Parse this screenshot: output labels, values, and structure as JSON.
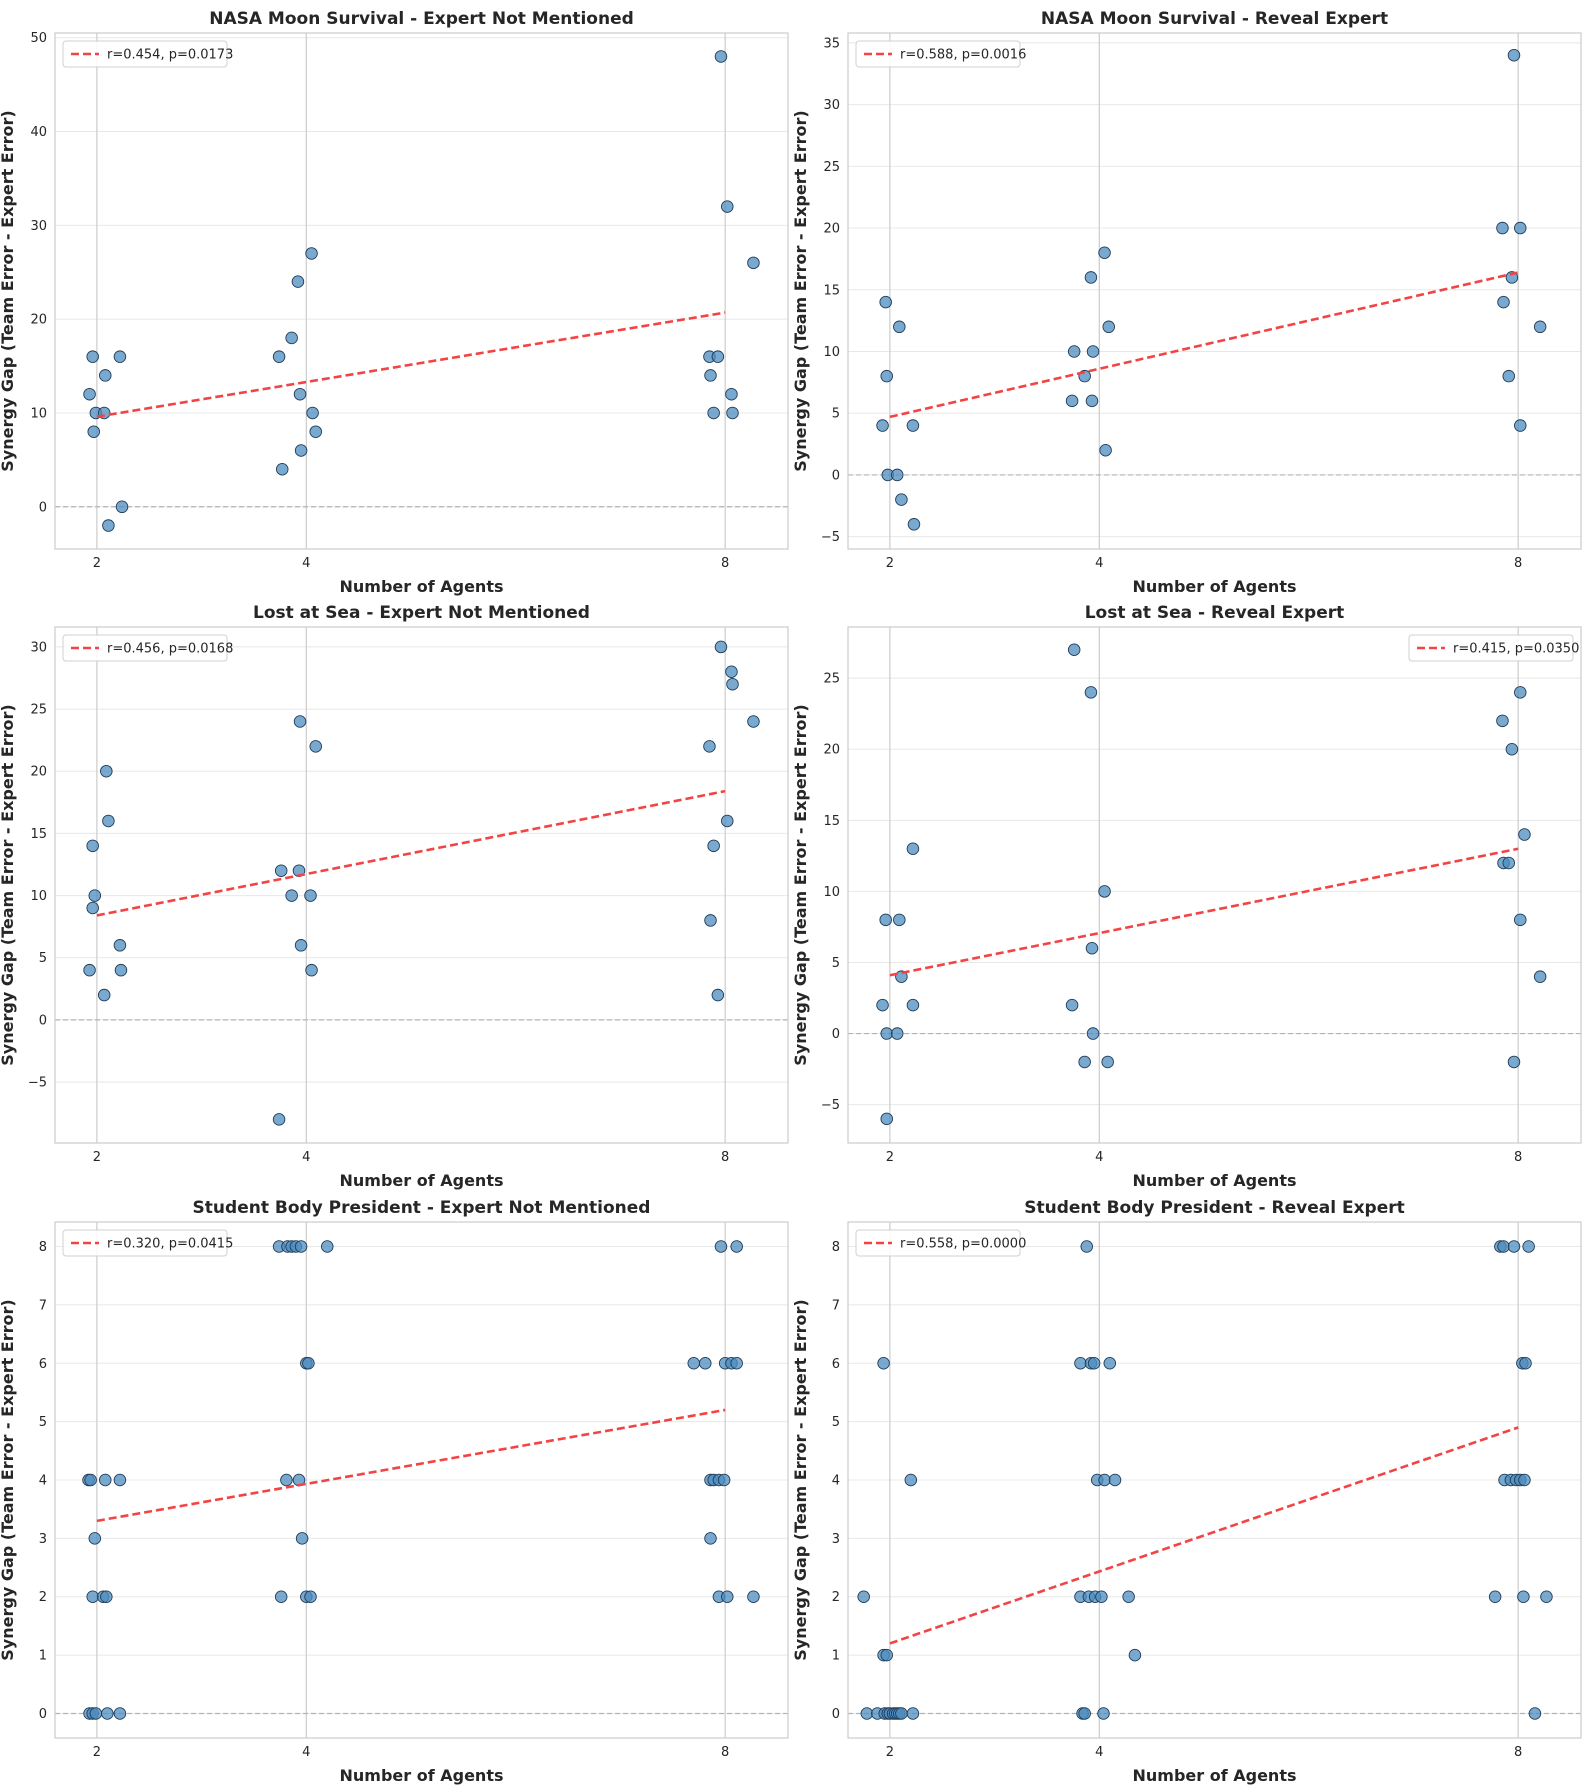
{
  "colors": {
    "point_fill": "#4c8cbf",
    "point_edge": "#1f3b57",
    "fit_line": "#f24444",
    "grid": "#e8e8e8",
    "vgrid": "#cccccc",
    "zero_line": "#b3b3b3",
    "frame": "#cccccc",
    "text": "#262626"
  },
  "chart_data": [
    {
      "type": "scatter",
      "title": "NASA Moon Survival - Expert Not Mentioned",
      "xlabel": "Number of Agents",
      "ylabel": "Synergy Gap (Team Error - Expert Error)",
      "x_ticks": [
        2,
        4,
        8
      ],
      "y_ticks": [
        0,
        10,
        20,
        30,
        40,
        50
      ],
      "xlim": [
        1.6,
        8.6
      ],
      "ylim": [
        -4.5,
        50.5
      ],
      "legend": {
        "label": "r=0.454, p=0.0173",
        "position": "upper-left"
      },
      "fit": {
        "x": [
          2,
          8
        ],
        "y": [
          9.6,
          20.7
        ]
      },
      "points": [
        {
          "x": 1.93,
          "y": 12
        },
        {
          "x": 1.96,
          "y": 16
        },
        {
          "x": 1.97,
          "y": 8
        },
        {
          "x": 1.99,
          "y": 10
        },
        {
          "x": 2.07,
          "y": 10
        },
        {
          "x": 2.08,
          "y": 14
        },
        {
          "x": 2.11,
          "y": -2
        },
        {
          "x": 2.22,
          "y": 16
        },
        {
          "x": 2.24,
          "y": 0
        },
        {
          "x": 3.74,
          "y": 16
        },
        {
          "x": 3.77,
          "y": 4
        },
        {
          "x": 3.86,
          "y": 18
        },
        {
          "x": 3.92,
          "y": 24
        },
        {
          "x": 3.94,
          "y": 12
        },
        {
          "x": 3.95,
          "y": 6
        },
        {
          "x": 4.05,
          "y": 27
        },
        {
          "x": 4.06,
          "y": 10
        },
        {
          "x": 4.09,
          "y": 8
        },
        {
          "x": 7.85,
          "y": 16
        },
        {
          "x": 7.86,
          "y": 14
        },
        {
          "x": 7.89,
          "y": 10
        },
        {
          "x": 7.93,
          "y": 16
        },
        {
          "x": 7.96,
          "y": 48
        },
        {
          "x": 8.02,
          "y": 32
        },
        {
          "x": 8.06,
          "y": 12
        },
        {
          "x": 8.07,
          "y": 10
        },
        {
          "x": 8.27,
          "y": 26
        }
      ]
    },
    {
      "type": "scatter",
      "title": "NASA Moon Survival - Reveal Expert",
      "xlabel": "Number of Agents",
      "ylabel": "Synergy Gap (Team Error - Expert Error)",
      "x_ticks": [
        2,
        4,
        8
      ],
      "y_ticks": [
        -5,
        0,
        5,
        10,
        15,
        20,
        25,
        30,
        35
      ],
      "xlim": [
        1.6,
        8.6
      ],
      "ylim": [
        -6.0,
        35.8
      ],
      "legend": {
        "label": "r=0.588, p=0.0016",
        "position": "upper-left"
      },
      "fit": {
        "x": [
          2,
          8
        ],
        "y": [
          4.7,
          16.4
        ]
      },
      "points": [
        {
          "x": 1.93,
          "y": 4
        },
        {
          "x": 1.96,
          "y": 14
        },
        {
          "x": 1.97,
          "y": 8
        },
        {
          "x": 1.98,
          "y": 0
        },
        {
          "x": 2.07,
          "y": 0
        },
        {
          "x": 2.09,
          "y": 12
        },
        {
          "x": 2.11,
          "y": -2
        },
        {
          "x": 2.22,
          "y": 4
        },
        {
          "x": 2.23,
          "y": -4
        },
        {
          "x": 3.74,
          "y": 6
        },
        {
          "x": 3.76,
          "y": 10
        },
        {
          "x": 3.86,
          "y": 8
        },
        {
          "x": 3.92,
          "y": 16
        },
        {
          "x": 3.93,
          "y": 6
        },
        {
          "x": 3.94,
          "y": 10
        },
        {
          "x": 4.05,
          "y": 18
        },
        {
          "x": 4.06,
          "y": 2
        },
        {
          "x": 4.09,
          "y": 12
        },
        {
          "x": 7.85,
          "y": 20
        },
        {
          "x": 7.86,
          "y": 14
        },
        {
          "x": 7.91,
          "y": 8
        },
        {
          "x": 7.94,
          "y": 16
        },
        {
          "x": 7.96,
          "y": 34
        },
        {
          "x": 8.02,
          "y": 20
        },
        {
          "x": 8.02,
          "y": 4
        },
        {
          "x": 8.21,
          "y": 12
        }
      ]
    },
    {
      "type": "scatter",
      "title": "Lost at Sea - Expert Not Mentioned",
      "xlabel": "Number of Agents",
      "ylabel": "Synergy Gap (Team Error - Expert Error)",
      "x_ticks": [
        2,
        4,
        8
      ],
      "y_ticks": [
        -5,
        0,
        5,
        10,
        15,
        20,
        25,
        30
      ],
      "xlim": [
        1.6,
        8.6
      ],
      "ylim": [
        -9.9,
        31.6
      ],
      "legend": {
        "label": "r=0.456, p=0.0168",
        "position": "upper-left"
      },
      "fit": {
        "x": [
          2,
          8
        ],
        "y": [
          8.4,
          18.4
        ]
      },
      "points": [
        {
          "x": 1.93,
          "y": 4
        },
        {
          "x": 1.96,
          "y": 14
        },
        {
          "x": 1.96,
          "y": 9
        },
        {
          "x": 1.98,
          "y": 10
        },
        {
          "x": 2.07,
          "y": 2
        },
        {
          "x": 2.09,
          "y": 20
        },
        {
          "x": 2.11,
          "y": 16
        },
        {
          "x": 2.22,
          "y": 6
        },
        {
          "x": 2.23,
          "y": 4
        },
        {
          "x": 3.74,
          "y": -8
        },
        {
          "x": 3.76,
          "y": 12
        },
        {
          "x": 3.86,
          "y": 10
        },
        {
          "x": 3.93,
          "y": 12
        },
        {
          "x": 3.94,
          "y": 24
        },
        {
          "x": 3.95,
          "y": 6
        },
        {
          "x": 4.04,
          "y": 10
        },
        {
          "x": 4.05,
          "y": 4
        },
        {
          "x": 4.09,
          "y": 22
        },
        {
          "x": 7.85,
          "y": 22
        },
        {
          "x": 7.86,
          "y": 8
        },
        {
          "x": 7.89,
          "y": 14
        },
        {
          "x": 7.93,
          "y": 2
        },
        {
          "x": 7.96,
          "y": 30
        },
        {
          "x": 8.02,
          "y": 16
        },
        {
          "x": 8.06,
          "y": 28
        },
        {
          "x": 8.07,
          "y": 27
        },
        {
          "x": 8.27,
          "y": 24
        }
      ]
    },
    {
      "type": "scatter",
      "title": "Lost at Sea - Reveal Expert",
      "xlabel": "Number of Agents",
      "ylabel": "Synergy Gap (Team Error - Expert Error)",
      "x_ticks": [
        2,
        4,
        8
      ],
      "y_ticks": [
        -5,
        0,
        5,
        10,
        15,
        20,
        25
      ],
      "xlim": [
        1.6,
        8.6
      ],
      "ylim": [
        -7.7,
        28.6
      ],
      "legend": {
        "label": "r=0.415, p=0.0350",
        "position": "upper-right"
      },
      "fit": {
        "x": [
          2,
          8
        ],
        "y": [
          4.1,
          13.0
        ]
      },
      "points": [
        {
          "x": 1.93,
          "y": 2
        },
        {
          "x": 1.96,
          "y": 8
        },
        {
          "x": 1.97,
          "y": 0
        },
        {
          "x": 1.97,
          "y": -6
        },
        {
          "x": 2.07,
          "y": 0
        },
        {
          "x": 2.09,
          "y": 8
        },
        {
          "x": 2.11,
          "y": 4
        },
        {
          "x": 2.22,
          "y": 13
        },
        {
          "x": 2.22,
          "y": 2
        },
        {
          "x": 3.74,
          "y": 2
        },
        {
          "x": 3.76,
          "y": 27
        },
        {
          "x": 3.86,
          "y": -2
        },
        {
          "x": 3.92,
          "y": 24
        },
        {
          "x": 3.93,
          "y": 6
        },
        {
          "x": 3.94,
          "y": 0
        },
        {
          "x": 4.05,
          "y": 10
        },
        {
          "x": 4.08,
          "y": -2
        },
        {
          "x": 7.85,
          "y": 22
        },
        {
          "x": 7.86,
          "y": 12
        },
        {
          "x": 7.91,
          "y": 12
        },
        {
          "x": 7.94,
          "y": 20
        },
        {
          "x": 7.96,
          "y": -2
        },
        {
          "x": 8.02,
          "y": 24
        },
        {
          "x": 8.02,
          "y": 8
        },
        {
          "x": 8.06,
          "y": 14
        },
        {
          "x": 8.21,
          "y": 4
        }
      ]
    },
    {
      "type": "scatter",
      "title": "Student Body President - Expert Not Mentioned",
      "xlabel": "Number of Agents",
      "ylabel": "Synergy Gap (Team Error - Expert Error)",
      "x_ticks": [
        2,
        4,
        8
      ],
      "y_ticks": [
        0,
        1,
        2,
        3,
        4,
        5,
        6,
        7,
        8
      ],
      "xlim": [
        1.6,
        8.6
      ],
      "ylim": [
        -0.42,
        8.42
      ],
      "legend": {
        "label": "r=0.320, p=0.0415",
        "position": "upper-left"
      },
      "fit": {
        "x": [
          2,
          8
        ],
        "y": [
          3.3,
          5.2
        ]
      },
      "points": [
        {
          "x": 1.92,
          "y": 4
        },
        {
          "x": 1.93,
          "y": 0
        },
        {
          "x": 1.94,
          "y": 4
        },
        {
          "x": 1.96,
          "y": 0
        },
        {
          "x": 1.96,
          "y": 2
        },
        {
          "x": 1.98,
          "y": 3
        },
        {
          "x": 1.99,
          "y": 0
        },
        {
          "x": 2.06,
          "y": 2
        },
        {
          "x": 2.08,
          "y": 4
        },
        {
          "x": 2.09,
          "y": 2
        },
        {
          "x": 2.1,
          "y": 0
        },
        {
          "x": 2.22,
          "y": 4
        },
        {
          "x": 2.22,
          "y": 0
        },
        {
          "x": 3.74,
          "y": 8
        },
        {
          "x": 3.76,
          "y": 2
        },
        {
          "x": 3.81,
          "y": 4
        },
        {
          "x": 3.82,
          "y": 8
        },
        {
          "x": 3.86,
          "y": 8
        },
        {
          "x": 3.9,
          "y": 8
        },
        {
          "x": 3.93,
          "y": 4
        },
        {
          "x": 3.95,
          "y": 8
        },
        {
          "x": 3.96,
          "y": 3
        },
        {
          "x": 4.0,
          "y": 6
        },
        {
          "x": 4.0,
          "y": 2
        },
        {
          "x": 4.02,
          "y": 6
        },
        {
          "x": 4.04,
          "y": 2
        },
        {
          "x": 4.2,
          "y": 8
        },
        {
          "x": 7.7,
          "y": 6
        },
        {
          "x": 7.81,
          "y": 6
        },
        {
          "x": 7.86,
          "y": 3
        },
        {
          "x": 7.86,
          "y": 4
        },
        {
          "x": 7.89,
          "y": 4
        },
        {
          "x": 7.94,
          "y": 2
        },
        {
          "x": 7.94,
          "y": 4
        },
        {
          "x": 7.96,
          "y": 8
        },
        {
          "x": 7.99,
          "y": 4
        },
        {
          "x": 8.0,
          "y": 6
        },
        {
          "x": 8.02,
          "y": 2
        },
        {
          "x": 8.06,
          "y": 6
        },
        {
          "x": 8.11,
          "y": 6
        },
        {
          "x": 8.11,
          "y": 8
        },
        {
          "x": 8.27,
          "y": 2
        }
      ]
    },
    {
      "type": "scatter",
      "title": "Student Body President - Reveal Expert",
      "xlabel": "Number of Agents",
      "ylabel": "Synergy Gap (Team Error - Expert Error)",
      "x_ticks": [
        2,
        4,
        8
      ],
      "y_ticks": [
        0,
        1,
        2,
        3,
        4,
        5,
        6,
        7,
        8
      ],
      "xlim": [
        1.6,
        8.6
      ],
      "ylim": [
        -0.42,
        8.42
      ],
      "legend": {
        "label": "r=0.558, p=0.0000",
        "position": "upper-left"
      },
      "fit": {
        "x": [
          2,
          8
        ],
        "y": [
          1.2,
          4.9
        ]
      },
      "points": [
        {
          "x": 1.75,
          "y": 2
        },
        {
          "x": 1.78,
          "y": 0
        },
        {
          "x": 1.88,
          "y": 0
        },
        {
          "x": 1.94,
          "y": 1
        },
        {
          "x": 1.94,
          "y": 6
        },
        {
          "x": 1.95,
          "y": 0
        },
        {
          "x": 1.97,
          "y": 1
        },
        {
          "x": 1.98,
          "y": 0
        },
        {
          "x": 2.0,
          "y": 0
        },
        {
          "x": 2.03,
          "y": 0
        },
        {
          "x": 2.05,
          "y": 0
        },
        {
          "x": 2.07,
          "y": 0
        },
        {
          "x": 2.09,
          "y": 0
        },
        {
          "x": 2.11,
          "y": 0
        },
        {
          "x": 2.2,
          "y": 4
        },
        {
          "x": 2.22,
          "y": 0
        },
        {
          "x": 3.82,
          "y": 6
        },
        {
          "x": 3.82,
          "y": 2
        },
        {
          "x": 3.84,
          "y": 0
        },
        {
          "x": 3.86,
          "y": 0
        },
        {
          "x": 3.88,
          "y": 8
        },
        {
          "x": 3.9,
          "y": 2
        },
        {
          "x": 3.92,
          "y": 6
        },
        {
          "x": 3.95,
          "y": 6
        },
        {
          "x": 3.96,
          "y": 2
        },
        {
          "x": 3.98,
          "y": 4
        },
        {
          "x": 4.02,
          "y": 2
        },
        {
          "x": 4.04,
          "y": 0
        },
        {
          "x": 4.05,
          "y": 4
        },
        {
          "x": 4.1,
          "y": 6
        },
        {
          "x": 4.15,
          "y": 4
        },
        {
          "x": 4.28,
          "y": 2
        },
        {
          "x": 4.34,
          "y": 1
        },
        {
          "x": 7.78,
          "y": 2
        },
        {
          "x": 7.83,
          "y": 8
        },
        {
          "x": 7.86,
          "y": 8
        },
        {
          "x": 7.87,
          "y": 4
        },
        {
          "x": 7.93,
          "y": 4
        },
        {
          "x": 7.96,
          "y": 8
        },
        {
          "x": 7.98,
          "y": 4
        },
        {
          "x": 8.02,
          "y": 4
        },
        {
          "x": 8.04,
          "y": 6
        },
        {
          "x": 8.05,
          "y": 2
        },
        {
          "x": 8.07,
          "y": 6
        },
        {
          "x": 8.06,
          "y": 4
        },
        {
          "x": 8.1,
          "y": 8
        },
        {
          "x": 8.16,
          "y": 0
        },
        {
          "x": 8.27,
          "y": 2
        }
      ]
    }
  ]
}
